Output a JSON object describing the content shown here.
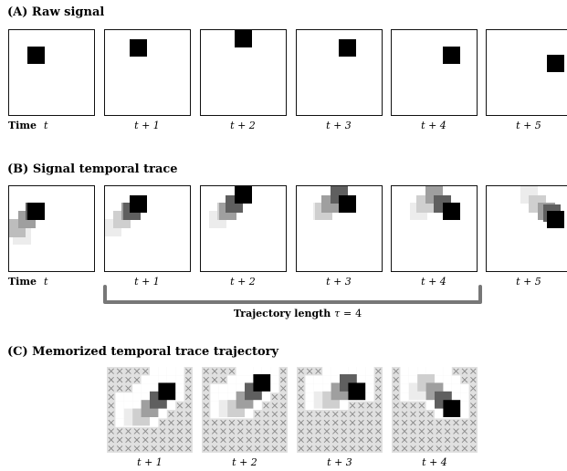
{
  "section_a": {
    "title": "(A) Raw signal"
  },
  "section_b": {
    "title": "(B) Signal temporal trace"
  },
  "section_c": {
    "title": "(C) Memorized temporal trace trajectory"
  },
  "time_prefix": "Time",
  "time_symbol": "t",
  "frame_labels": [
    "t + 1",
    "t + 2",
    "t + 3",
    "t + 4",
    "t + 5"
  ],
  "trajectory": {
    "label_prefix": "Trajectory length",
    "tau_symbol": "τ",
    "equals": "=",
    "value": "4"
  },
  "memorized_labels": [
    "t + 1",
    "t + 2",
    "t + 3",
    "t + 4"
  ],
  "colors": {
    "frame_border": "#111111",
    "signal": "#000000",
    "trace_1": "#5f5f5f",
    "trace_2": "#9f9f9f",
    "trace_3": "#cfcfcf",
    "trace_4": "#ececec",
    "bracket": "#777777",
    "masked_cell": "#e0e0e0",
    "mask_x": "#888888"
  }
}
